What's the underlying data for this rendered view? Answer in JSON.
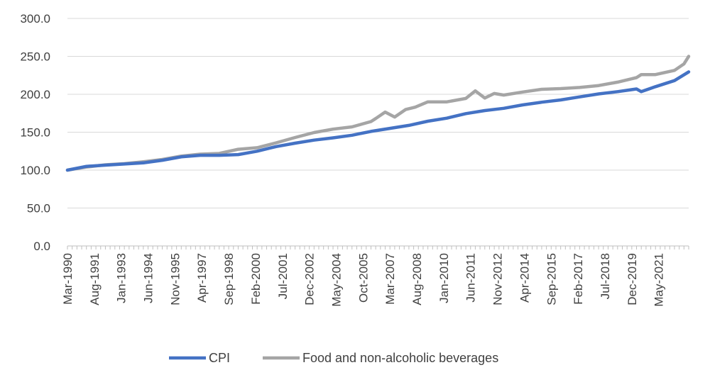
{
  "chart_data": {
    "type": "line",
    "title": "",
    "xlabel": "",
    "ylabel": "",
    "ylim": [
      0,
      300
    ],
    "yticks": [
      "0.0",
      "50.0",
      "100.0",
      "150.0",
      "200.0",
      "250.0",
      "300.0"
    ],
    "xtick_labels": [
      "Mar-1990",
      "Aug-1991",
      "Jan-1993",
      "Jun-1994",
      "Nov-1995",
      "Apr-1997",
      "Sep-1998",
      "Feb-2000",
      "Jul-2001",
      "Dec-2002",
      "May-2004",
      "Oct-2005",
      "Mar-2007",
      "Aug-2008",
      "Jan-2010",
      "Jun-2011",
      "Nov-2012",
      "Apr-2014",
      "Sep-2015",
      "Feb-2017",
      "Jul-2018",
      "Dec-2019",
      "May-2021"
    ],
    "grid": "horizontal",
    "legend_position": "bottom",
    "x_start": "Mar-1990",
    "x_end": "Dec-2022",
    "series": [
      {
        "name": "CPI",
        "color": "#4472C4",
        "points": [
          [
            "Mar-1990",
            100.0
          ],
          [
            "Mar-1991",
            105.0
          ],
          [
            "Mar-1992",
            106.5
          ],
          [
            "Mar-1993",
            108.0
          ],
          [
            "Mar-1994",
            109.5
          ],
          [
            "Mar-1995",
            113.0
          ],
          [
            "Mar-1996",
            117.5
          ],
          [
            "Mar-1997",
            119.5
          ],
          [
            "Mar-1998",
            119.5
          ],
          [
            "Mar-1999",
            120.5
          ],
          [
            "Mar-2000",
            125.0
          ],
          [
            "Mar-2001",
            131.0
          ],
          [
            "Mar-2002",
            135.5
          ],
          [
            "Mar-2003",
            139.5
          ],
          [
            "Mar-2004",
            142.5
          ],
          [
            "Mar-2005",
            146.0
          ],
          [
            "Mar-2006",
            151.0
          ],
          [
            "Mar-2007",
            155.0
          ],
          [
            "Mar-2008",
            159.0
          ],
          [
            "Mar-2009",
            164.5
          ],
          [
            "Mar-2010",
            168.5
          ],
          [
            "Mar-2011",
            174.5
          ],
          [
            "Mar-2012",
            178.5
          ],
          [
            "Mar-2013",
            181.5
          ],
          [
            "Mar-2014",
            186.0
          ],
          [
            "Mar-2015",
            189.5
          ],
          [
            "Mar-2016",
            192.5
          ],
          [
            "Mar-2017",
            196.5
          ],
          [
            "Mar-2018",
            200.5
          ],
          [
            "Mar-2019",
            203.5
          ],
          [
            "Mar-2020",
            207.0
          ],
          [
            "Jun-2020",
            203.5
          ],
          [
            "Mar-2021",
            210.0
          ],
          [
            "Mar-2022",
            218.0
          ],
          [
            "Dec-2022",
            229.5
          ]
        ]
      },
      {
        "name": "Food and non-alcoholic beverages",
        "color": "#A5A5A5",
        "points": [
          [
            "Mar-1990",
            100.0
          ],
          [
            "Mar-1991",
            104.0
          ],
          [
            "Mar-1992",
            107.0
          ],
          [
            "Mar-1993",
            108.5
          ],
          [
            "Mar-1994",
            111.0
          ],
          [
            "Mar-1995",
            114.0
          ],
          [
            "Mar-1996",
            118.5
          ],
          [
            "Mar-1997",
            121.0
          ],
          [
            "Mar-1998",
            122.0
          ],
          [
            "Mar-1999",
            127.5
          ],
          [
            "Mar-2000",
            129.5
          ],
          [
            "Mar-2001",
            136.0
          ],
          [
            "Mar-2002",
            143.0
          ],
          [
            "Mar-2003",
            149.5
          ],
          [
            "Mar-2004",
            154.0
          ],
          [
            "Mar-2005",
            157.0
          ],
          [
            "Mar-2006",
            164.0
          ],
          [
            "Jun-2006",
            168.0
          ],
          [
            "Dec-2006",
            176.5
          ],
          [
            "Jun-2007",
            170.0
          ],
          [
            "Jan-2008",
            180.0
          ],
          [
            "Jul-2008",
            183.0
          ],
          [
            "Mar-2009",
            190.0
          ],
          [
            "Mar-2010",
            190.0
          ],
          [
            "Mar-2011",
            194.5
          ],
          [
            "Sep-2011",
            204.5
          ],
          [
            "Mar-2012",
            195.0
          ],
          [
            "Sep-2012",
            201.0
          ],
          [
            "Mar-2013",
            199.0
          ],
          [
            "Mar-2014",
            203.0
          ],
          [
            "Mar-2015",
            206.5
          ],
          [
            "Mar-2016",
            207.5
          ],
          [
            "Mar-2017",
            209.0
          ],
          [
            "Mar-2018",
            211.5
          ],
          [
            "Mar-2019",
            216.0
          ],
          [
            "Mar-2020",
            222.0
          ],
          [
            "Jun-2020",
            226.0
          ],
          [
            "Mar-2021",
            226.0
          ],
          [
            "Mar-2022",
            231.5
          ],
          [
            "Sep-2022",
            240.0
          ],
          [
            "Dec-2022",
            250.0
          ]
        ]
      }
    ]
  }
}
